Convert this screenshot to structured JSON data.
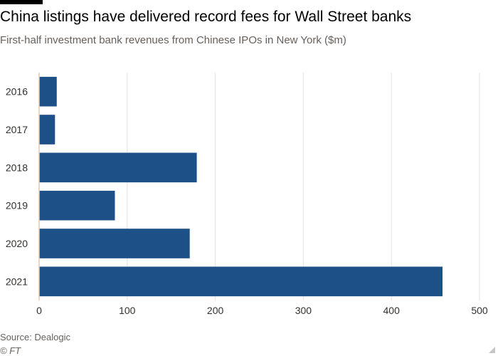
{
  "chart_data": {
    "type": "bar",
    "orientation": "horizontal",
    "title": "China listings have delivered record fees for Wall Street banks",
    "subtitle": "First-half investment bank revenues from Chinese IPOs in New York ($m)",
    "categories": [
      "2016",
      "2017",
      "2018",
      "2019",
      "2020",
      "2021"
    ],
    "values": [
      20,
      18,
      179,
      86,
      171,
      458
    ],
    "xlim": [
      0,
      500
    ],
    "xticks": [
      0,
      100,
      200,
      300,
      400,
      500
    ],
    "grid": true,
    "bar_color": "#1e5088",
    "grid_color": "#e6e2de",
    "zero_line_color": "#f2c6a8"
  },
  "footer": {
    "source": "Source: Dealogic",
    "copyright": "© FT"
  }
}
